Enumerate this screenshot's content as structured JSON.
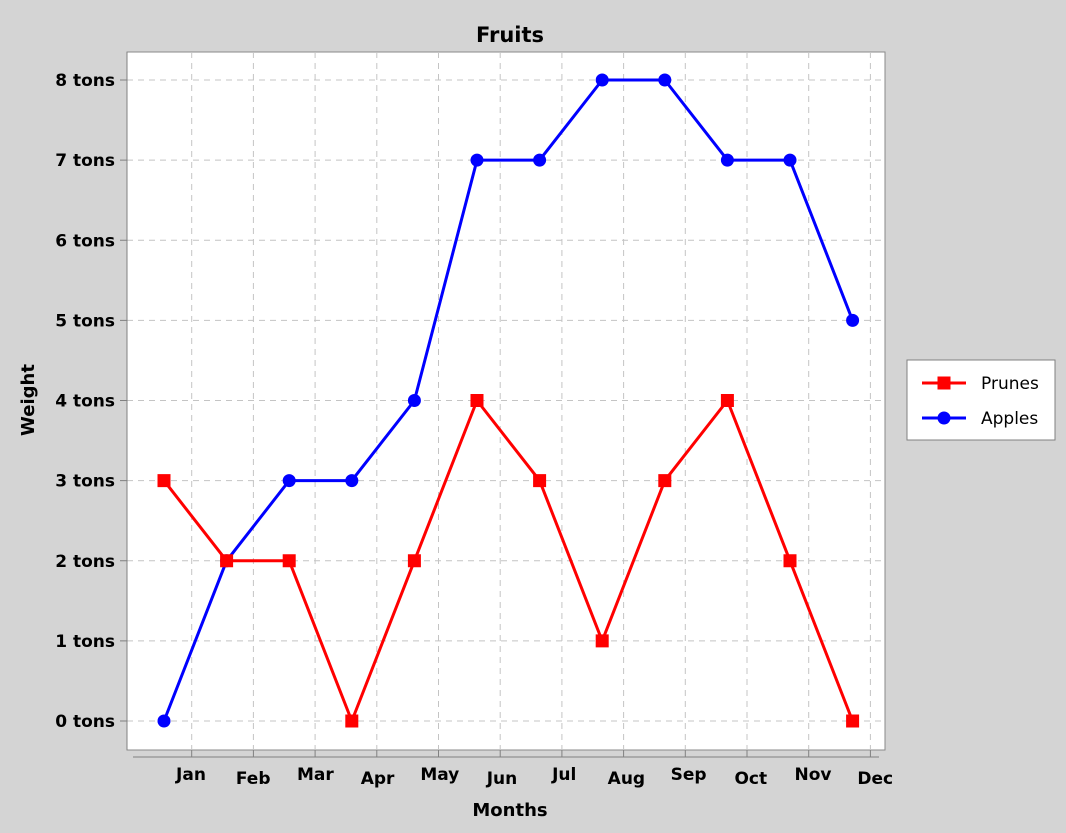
{
  "chart_data": {
    "type": "line",
    "title": "Fruits",
    "xlabel": "Months",
    "ylabel": "Weight",
    "categories": [
      "Jan",
      "Feb",
      "Mar",
      "Apr",
      "May",
      "Jun",
      "Jul",
      "Aug",
      "Sep",
      "Oct",
      "Nov",
      "Dec"
    ],
    "y_tick_labels": [
      "0 tons",
      "1 tons",
      "2 tons",
      "3 tons",
      "4 tons",
      "5 tons",
      "6 tons",
      "7 tons",
      "8 tons"
    ],
    "ylim": [
      0,
      8
    ],
    "grid": true,
    "legend_position": "right",
    "series": [
      {
        "name": "Prunes",
        "color": "#ff0000",
        "marker": "square",
        "values": [
          3,
          2,
          2,
          0,
          2,
          4,
          3,
          1,
          3,
          4,
          2,
          0
        ]
      },
      {
        "name": "Apples",
        "color": "#0000ff",
        "marker": "circle",
        "values": [
          0,
          2,
          3,
          3,
          4,
          7,
          7,
          8,
          8,
          7,
          7,
          5
        ]
      }
    ]
  }
}
